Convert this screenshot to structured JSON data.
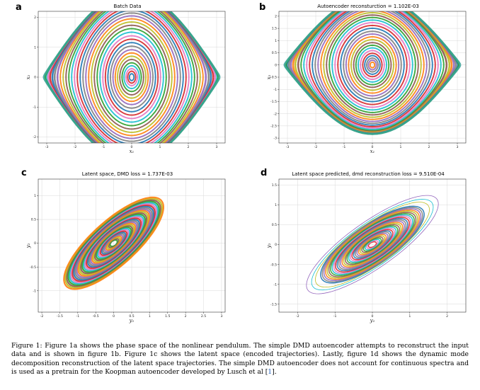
{
  "figure": {
    "panels": [
      {
        "letter": "a",
        "title": "Batch Data",
        "xlabel": "x₁",
        "ylabel": "x₂"
      },
      {
        "letter": "b",
        "title": "Autoencoder reconsturction = 1.102E-03",
        "xlabel": "x₁",
        "ylabel": "x₂"
      },
      {
        "letter": "c",
        "title": "Latent space, DMD loss = 1.737E-03",
        "xlabel": "y₁",
        "ylabel": "y₂"
      },
      {
        "letter": "d",
        "title": "Latent space predicted, dmd reconstruction loss = 9.510E-04",
        "xlabel": "y₁",
        "ylabel": "y₂"
      }
    ]
  },
  "caption": {
    "text": "Figure 1: Figure 1a shows the phase space of the nonlinear pendulum. The simple DMD autoencoder attempts to reconstruct the input data and is shown in figure 1b. Figure 1c shows the latent space (encoded trajectories). Lastly, figure 1d shows the dynamic mode decomposition reconstruction of the latent space trajectories. The simple DMD autoencoder does not account for continuous spectra and is used as a pretrain for the Koopman autoencoder developed by Lusch et al [",
    "ref": "1",
    "end": "]."
  },
  "chart_data": [
    {
      "type": "scatter",
      "title": "Batch Data",
      "xlabel": "x₁",
      "ylabel": "x₂",
      "xlim": [
        -3.3,
        3.3
      ],
      "ylim": [
        -2.2,
        2.2
      ],
      "xticks": [
        -3,
        -2,
        -1,
        0,
        1,
        2,
        3
      ],
      "yticks": [
        -2,
        -1,
        0,
        1,
        2
      ],
      "shape": "pendulum",
      "amplitudes": [
        0.08,
        0.14,
        0.2,
        0.27,
        0.34,
        0.42,
        0.5,
        0.58,
        0.66,
        0.75,
        0.84,
        0.93,
        1.02,
        1.12,
        1.22,
        1.32,
        1.42,
        1.52,
        1.62,
        1.72,
        1.82,
        1.92,
        2.02,
        2.12,
        2.22,
        2.32,
        2.42,
        2.52,
        2.62,
        2.72,
        2.8,
        2.88,
        2.95,
        3.02
      ],
      "grid": true
    },
    {
      "type": "scatter",
      "title": "Autoencoder reconsturction = 1.102E-03",
      "xlabel": "x₁",
      "ylabel": "x₂",
      "xlim": [
        -3.3,
        3.3
      ],
      "ylim": [
        -3.2,
        2.2
      ],
      "xticks": [
        -3,
        -2,
        -1,
        0,
        1,
        2,
        3
      ],
      "yticks": [
        -3.0,
        -2.5,
        -2.0,
        -1.5,
        -1.0,
        -0.5,
        0.0,
        0.5,
        1.0,
        1.5,
        2.0
      ],
      "shape": "pendulum",
      "amplitudes": [
        0.08,
        0.14,
        0.2,
        0.27,
        0.34,
        0.42,
        0.5,
        0.58,
        0.66,
        0.75,
        0.84,
        0.93,
        1.02,
        1.12,
        1.22,
        1.32,
        1.42,
        1.52,
        1.62,
        1.72,
        1.82,
        1.92,
        2.02,
        2.12,
        2.22,
        2.32,
        2.42,
        2.52,
        2.62,
        2.72,
        2.8,
        2.88,
        2.95,
        3.02
      ],
      "grid": true
    },
    {
      "type": "scatter",
      "title": "Latent space, DMD loss = 1.737E-03",
      "xlabel": "y₁",
      "ylabel": "y₂",
      "xlim": [
        -2.1,
        3.1
      ],
      "ylim": [
        -1.45,
        1.35
      ],
      "xticks": [
        -2.0,
        -1.5,
        -1.0,
        -0.5,
        0.0,
        0.5,
        1.0,
        1.5,
        2.0,
        2.5,
        3.0
      ],
      "yticks": [
        -1.0,
        -0.5,
        0.0,
        0.5,
        1.0
      ],
      "shape": "tilted-ellipse",
      "grid": true
    },
    {
      "type": "scatter",
      "title": "Latent space predicted, dmd reconstruction loss = 9.510E-04",
      "xlabel": "y₁",
      "ylabel": "y₂",
      "xlim": [
        -2.5,
        2.5
      ],
      "ylim": [
        -1.7,
        1.65
      ],
      "xticks": [
        -2,
        -1,
        0,
        1,
        2
      ],
      "yticks": [
        -1.5,
        -1.0,
        -0.5,
        0.0,
        0.5,
        1.0,
        1.5
      ],
      "shape": "tilted-ellipse",
      "grid": true
    }
  ]
}
